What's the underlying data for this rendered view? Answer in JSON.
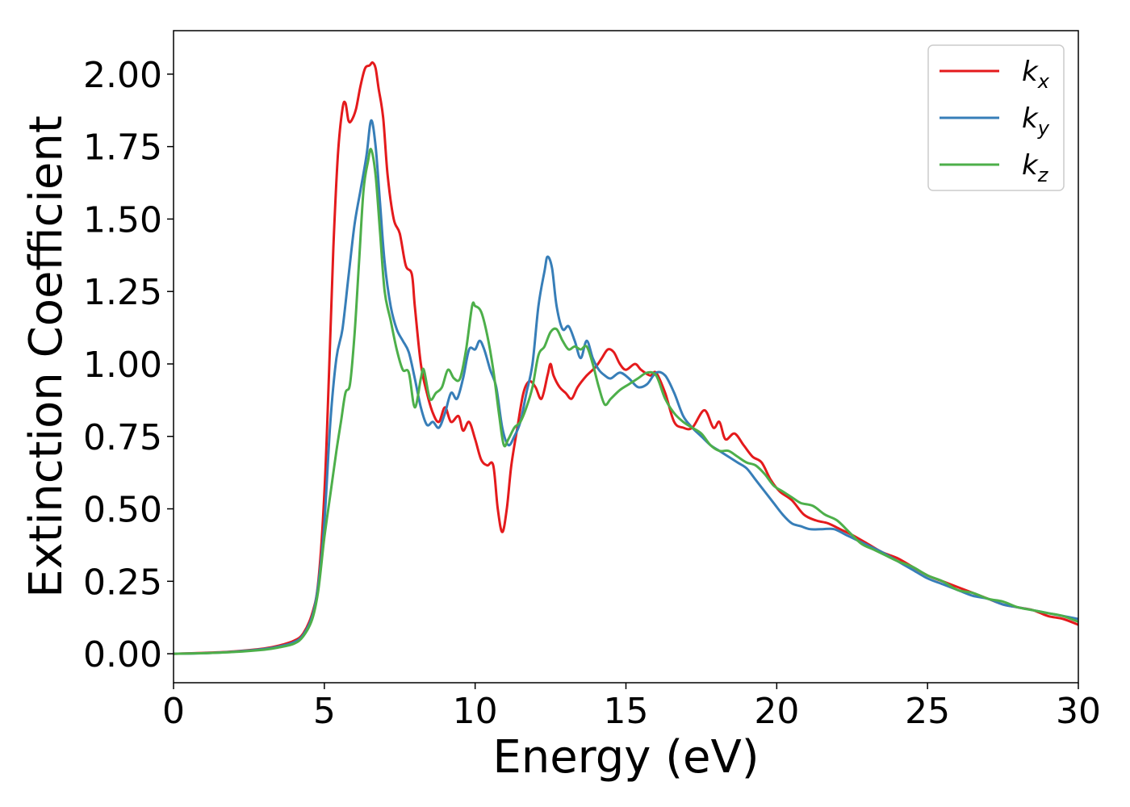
{
  "chart_data": {
    "type": "line",
    "xlabel": "Energy (eV)",
    "ylabel": "Extinction Coefficient",
    "xlim": [
      0,
      30
    ],
    "ylim": [
      -0.1,
      2.15
    ],
    "xticks": [
      0,
      5,
      10,
      15,
      20,
      25,
      30
    ],
    "xtick_labels": [
      "0",
      "5",
      "10",
      "15",
      "20",
      "25",
      "30"
    ],
    "yticks": [
      0,
      0.25,
      0.5,
      0.75,
      1.0,
      1.25,
      1.5,
      1.75,
      2.0
    ],
    "ytick_labels": [
      "0.00",
      "0.25",
      "0.50",
      "0.75",
      "1.00",
      "1.25",
      "1.50",
      "1.75",
      "2.00"
    ],
    "grid": false,
    "legend_position": "top-right",
    "series": [
      {
        "name": "k",
        "subscript": "x",
        "color": "#e41a1c",
        "points": [
          [
            0,
            0
          ],
          [
            1,
            0.003
          ],
          [
            2,
            0.008
          ],
          [
            3,
            0.018
          ],
          [
            3.5,
            0.028
          ],
          [
            4,
            0.045
          ],
          [
            4.3,
            0.07
          ],
          [
            4.6,
            0.14
          ],
          [
            4.8,
            0.25
          ],
          [
            5.0,
            0.55
          ],
          [
            5.15,
            0.95
          ],
          [
            5.3,
            1.4
          ],
          [
            5.45,
            1.72
          ],
          [
            5.6,
            1.88
          ],
          [
            5.7,
            1.9
          ],
          [
            5.8,
            1.84
          ],
          [
            5.9,
            1.84
          ],
          [
            6.05,
            1.88
          ],
          [
            6.2,
            1.96
          ],
          [
            6.35,
            2.02
          ],
          [
            6.5,
            2.03
          ],
          [
            6.6,
            2.04
          ],
          [
            6.7,
            2.02
          ],
          [
            6.8,
            1.95
          ],
          [
            6.95,
            1.85
          ],
          [
            7.1,
            1.65
          ],
          [
            7.3,
            1.5
          ],
          [
            7.5,
            1.45
          ],
          [
            7.7,
            1.34
          ],
          [
            7.9,
            1.31
          ],
          [
            8.0,
            1.2
          ],
          [
            8.2,
            1.0
          ],
          [
            8.4,
            0.9
          ],
          [
            8.6,
            0.83
          ],
          [
            8.8,
            0.8
          ],
          [
            9.0,
            0.85
          ],
          [
            9.2,
            0.8
          ],
          [
            9.45,
            0.82
          ],
          [
            9.6,
            0.77
          ],
          [
            9.8,
            0.8
          ],
          [
            10.0,
            0.74
          ],
          [
            10.2,
            0.67
          ],
          [
            10.4,
            0.65
          ],
          [
            10.6,
            0.65
          ],
          [
            10.75,
            0.5
          ],
          [
            10.9,
            0.42
          ],
          [
            11.05,
            0.5
          ],
          [
            11.2,
            0.65
          ],
          [
            11.4,
            0.78
          ],
          [
            11.6,
            0.9
          ],
          [
            11.8,
            0.94
          ],
          [
            12.0,
            0.92
          ],
          [
            12.2,
            0.88
          ],
          [
            12.4,
            0.96
          ],
          [
            12.5,
            1.0
          ],
          [
            12.6,
            0.96
          ],
          [
            12.8,
            0.92
          ],
          [
            13.0,
            0.9
          ],
          [
            13.2,
            0.88
          ],
          [
            13.4,
            0.92
          ],
          [
            13.7,
            0.96
          ],
          [
            14.0,
            0.99
          ],
          [
            14.2,
            1.02
          ],
          [
            14.4,
            1.05
          ],
          [
            14.6,
            1.04
          ],
          [
            14.8,
            1.0
          ],
          [
            15.0,
            0.98
          ],
          [
            15.3,
            1.0
          ],
          [
            15.5,
            0.98
          ],
          [
            15.8,
            0.96
          ],
          [
            16.0,
            0.97
          ],
          [
            16.3,
            0.9
          ],
          [
            16.6,
            0.8
          ],
          [
            16.9,
            0.78
          ],
          [
            17.2,
            0.78
          ],
          [
            17.6,
            0.84
          ],
          [
            17.9,
            0.78
          ],
          [
            18.1,
            0.8
          ],
          [
            18.3,
            0.74
          ],
          [
            18.6,
            0.76
          ],
          [
            18.9,
            0.72
          ],
          [
            19.2,
            0.68
          ],
          [
            19.5,
            0.66
          ],
          [
            19.8,
            0.6
          ],
          [
            20.1,
            0.56
          ],
          [
            20.5,
            0.53
          ],
          [
            20.9,
            0.48
          ],
          [
            21.3,
            0.46
          ],
          [
            21.7,
            0.45
          ],
          [
            22.1,
            0.43
          ],
          [
            22.5,
            0.41
          ],
          [
            23.0,
            0.38
          ],
          [
            23.5,
            0.35
          ],
          [
            24.0,
            0.33
          ],
          [
            24.5,
            0.3
          ],
          [
            25.0,
            0.27
          ],
          [
            25.5,
            0.25
          ],
          [
            26.0,
            0.23
          ],
          [
            26.5,
            0.21
          ],
          [
            27.0,
            0.19
          ],
          [
            27.5,
            0.17
          ],
          [
            28.0,
            0.16
          ],
          [
            28.5,
            0.15
          ],
          [
            29.0,
            0.13
          ],
          [
            29.5,
            0.12
          ],
          [
            30.0,
            0.1
          ]
        ]
      },
      {
        "name": "k",
        "subscript": "y",
        "color": "#377eb8",
        "points": [
          [
            0,
            0
          ],
          [
            1,
            0.002
          ],
          [
            2,
            0.007
          ],
          [
            3,
            0.016
          ],
          [
            3.5,
            0.025
          ],
          [
            4,
            0.04
          ],
          [
            4.3,
            0.065
          ],
          [
            4.6,
            0.13
          ],
          [
            4.8,
            0.24
          ],
          [
            5.0,
            0.45
          ],
          [
            5.2,
            0.8
          ],
          [
            5.4,
            1.02
          ],
          [
            5.6,
            1.12
          ],
          [
            5.8,
            1.3
          ],
          [
            6.0,
            1.48
          ],
          [
            6.2,
            1.6
          ],
          [
            6.4,
            1.72
          ],
          [
            6.55,
            1.84
          ],
          [
            6.7,
            1.75
          ],
          [
            6.85,
            1.55
          ],
          [
            7.0,
            1.35
          ],
          [
            7.2,
            1.2
          ],
          [
            7.4,
            1.12
          ],
          [
            7.6,
            1.08
          ],
          [
            7.8,
            1.04
          ],
          [
            8.0,
            0.95
          ],
          [
            8.2,
            0.85
          ],
          [
            8.4,
            0.79
          ],
          [
            8.6,
            0.8
          ],
          [
            8.8,
            0.78
          ],
          [
            9.0,
            0.83
          ],
          [
            9.2,
            0.9
          ],
          [
            9.4,
            0.88
          ],
          [
            9.6,
            0.95
          ],
          [
            9.8,
            1.05
          ],
          [
            10.0,
            1.05
          ],
          [
            10.15,
            1.08
          ],
          [
            10.3,
            1.05
          ],
          [
            10.5,
            0.98
          ],
          [
            10.7,
            0.92
          ],
          [
            10.9,
            0.78
          ],
          [
            11.1,
            0.72
          ],
          [
            11.3,
            0.75
          ],
          [
            11.5,
            0.8
          ],
          [
            11.7,
            0.9
          ],
          [
            11.9,
            1.0
          ],
          [
            12.1,
            1.2
          ],
          [
            12.3,
            1.32
          ],
          [
            12.4,
            1.37
          ],
          [
            12.55,
            1.33
          ],
          [
            12.7,
            1.2
          ],
          [
            12.9,
            1.12
          ],
          [
            13.1,
            1.13
          ],
          [
            13.3,
            1.08
          ],
          [
            13.5,
            1.02
          ],
          [
            13.7,
            1.08
          ],
          [
            13.9,
            1.02
          ],
          [
            14.1,
            0.98
          ],
          [
            14.3,
            0.96
          ],
          [
            14.5,
            0.95
          ],
          [
            14.8,
            0.97
          ],
          [
            15.1,
            0.95
          ],
          [
            15.4,
            0.92
          ],
          [
            15.7,
            0.93
          ],
          [
            16.0,
            0.97
          ],
          [
            16.3,
            0.96
          ],
          [
            16.6,
            0.9
          ],
          [
            16.9,
            0.82
          ],
          [
            17.2,
            0.78
          ],
          [
            17.5,
            0.75
          ],
          [
            17.8,
            0.72
          ],
          [
            18.1,
            0.7
          ],
          [
            18.4,
            0.68
          ],
          [
            18.7,
            0.66
          ],
          [
            19.0,
            0.64
          ],
          [
            19.3,
            0.6
          ],
          [
            19.6,
            0.56
          ],
          [
            19.9,
            0.52
          ],
          [
            20.2,
            0.48
          ],
          [
            20.5,
            0.45
          ],
          [
            20.8,
            0.44
          ],
          [
            21.1,
            0.43
          ],
          [
            21.5,
            0.43
          ],
          [
            21.9,
            0.43
          ],
          [
            22.3,
            0.41
          ],
          [
            22.7,
            0.39
          ],
          [
            23.1,
            0.37
          ],
          [
            23.5,
            0.35
          ],
          [
            24.0,
            0.32
          ],
          [
            24.5,
            0.29
          ],
          [
            25.0,
            0.26
          ],
          [
            25.5,
            0.24
          ],
          [
            26.0,
            0.22
          ],
          [
            26.5,
            0.2
          ],
          [
            27.0,
            0.19
          ],
          [
            27.5,
            0.17
          ],
          [
            28.0,
            0.16
          ],
          [
            28.5,
            0.15
          ],
          [
            29.0,
            0.14
          ],
          [
            29.5,
            0.13
          ],
          [
            30.0,
            0.12
          ]
        ]
      },
      {
        "name": "k",
        "subscript": "z",
        "color": "#4daf4a",
        "points": [
          [
            0,
            0
          ],
          [
            1,
            0.002
          ],
          [
            2,
            0.006
          ],
          [
            3,
            0.014
          ],
          [
            3.5,
            0.022
          ],
          [
            4,
            0.035
          ],
          [
            4.3,
            0.06
          ],
          [
            4.6,
            0.12
          ],
          [
            4.8,
            0.22
          ],
          [
            5.0,
            0.4
          ],
          [
            5.2,
            0.55
          ],
          [
            5.4,
            0.7
          ],
          [
            5.55,
            0.8
          ],
          [
            5.7,
            0.9
          ],
          [
            5.85,
            0.93
          ],
          [
            6.0,
            1.1
          ],
          [
            6.15,
            1.35
          ],
          [
            6.3,
            1.6
          ],
          [
            6.45,
            1.7
          ],
          [
            6.55,
            1.74
          ],
          [
            6.7,
            1.65
          ],
          [
            6.85,
            1.45
          ],
          [
            7.0,
            1.25
          ],
          [
            7.2,
            1.15
          ],
          [
            7.4,
            1.05
          ],
          [
            7.6,
            0.98
          ],
          [
            7.8,
            0.97
          ],
          [
            8.0,
            0.85
          ],
          [
            8.2,
            0.95
          ],
          [
            8.3,
            0.98
          ],
          [
            8.5,
            0.88
          ],
          [
            8.7,
            0.9
          ],
          [
            8.9,
            0.92
          ],
          [
            9.1,
            0.98
          ],
          [
            9.3,
            0.95
          ],
          [
            9.5,
            0.95
          ],
          [
            9.7,
            1.05
          ],
          [
            9.9,
            1.2
          ],
          [
            10.0,
            1.2
          ],
          [
            10.2,
            1.18
          ],
          [
            10.4,
            1.1
          ],
          [
            10.6,
            0.98
          ],
          [
            10.8,
            0.82
          ],
          [
            10.95,
            0.72
          ],
          [
            11.1,
            0.74
          ],
          [
            11.3,
            0.78
          ],
          [
            11.5,
            0.8
          ],
          [
            11.7,
            0.85
          ],
          [
            11.9,
            0.92
          ],
          [
            12.1,
            1.03
          ],
          [
            12.3,
            1.06
          ],
          [
            12.5,
            1.11
          ],
          [
            12.7,
            1.12
          ],
          [
            12.9,
            1.08
          ],
          [
            13.1,
            1.05
          ],
          [
            13.3,
            1.06
          ],
          [
            13.5,
            1.05
          ],
          [
            13.7,
            1.06
          ],
          [
            13.9,
            1.0
          ],
          [
            14.1,
            0.92
          ],
          [
            14.3,
            0.86
          ],
          [
            14.5,
            0.88
          ],
          [
            14.8,
            0.91
          ],
          [
            15.1,
            0.93
          ],
          [
            15.4,
            0.95
          ],
          [
            15.7,
            0.97
          ],
          [
            16.0,
            0.96
          ],
          [
            16.3,
            0.88
          ],
          [
            16.6,
            0.83
          ],
          [
            16.9,
            0.8
          ],
          [
            17.2,
            0.78
          ],
          [
            17.5,
            0.76
          ],
          [
            17.8,
            0.72
          ],
          [
            18.1,
            0.7
          ],
          [
            18.4,
            0.7
          ],
          [
            18.7,
            0.68
          ],
          [
            19.0,
            0.66
          ],
          [
            19.3,
            0.65
          ],
          [
            19.6,
            0.62
          ],
          [
            19.9,
            0.58
          ],
          [
            20.2,
            0.56
          ],
          [
            20.5,
            0.54
          ],
          [
            20.8,
            0.52
          ],
          [
            21.2,
            0.51
          ],
          [
            21.6,
            0.48
          ],
          [
            22.0,
            0.46
          ],
          [
            22.4,
            0.42
          ],
          [
            22.8,
            0.38
          ],
          [
            23.2,
            0.36
          ],
          [
            23.6,
            0.34
          ],
          [
            24.0,
            0.32
          ],
          [
            24.5,
            0.3
          ],
          [
            25.0,
            0.27
          ],
          [
            25.5,
            0.25
          ],
          [
            26.0,
            0.22
          ],
          [
            26.5,
            0.21
          ],
          [
            27.0,
            0.19
          ],
          [
            27.5,
            0.18
          ],
          [
            28.0,
            0.16
          ],
          [
            28.5,
            0.15
          ],
          [
            29.0,
            0.14
          ],
          [
            29.5,
            0.13
          ],
          [
            30.0,
            0.11
          ]
        ]
      }
    ]
  }
}
